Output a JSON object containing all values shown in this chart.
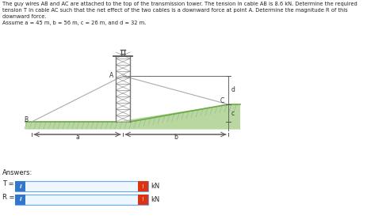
{
  "title_text_lines": [
    "The guy wires AB and AC are attached to the top of the transmission tower. The tension in cable AB is 8.6 kN. Determine the required",
    "tension T in cable AC such that the net effect of the two cables is a downward force at point A. Determine the magnitude R of this",
    "downward force.",
    "Assume a = 45 m, b = 56 m, c = 26 m, and d = 32 m."
  ],
  "bg_color": "#ffffff",
  "cable_color": "#aaaaaa",
  "ground_fill": "#b8d8a0",
  "ground_line": "#6aaa40",
  "tower_color": "#777777",
  "dim_color": "#555555",
  "label_color": "#333333",
  "answers_label": "Answers:",
  "T_label": "T =",
  "R_label": "R =",
  "kN_label": "kN",
  "btn_blue": "#3377cc",
  "btn_orange": "#dd3311",
  "input_bg": "#eef6ff",
  "input_border": "#66aaee"
}
